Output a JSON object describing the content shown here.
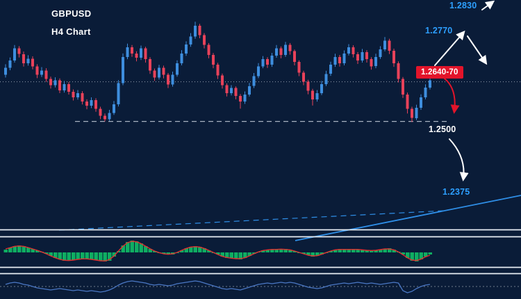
{
  "header": {
    "symbol": "GBPUSD",
    "timeframe": "H4 Chart"
  },
  "annotations": {
    "upper_target": "1.2830",
    "resistance_target": "1.2770",
    "zone_label": "1.2640-70",
    "support_label": "1.2500",
    "lower_target": "1.2375"
  },
  "colors": {
    "background": "#0a1c38",
    "bull": "#3e8ede",
    "bear": "#e8425a",
    "accent_blue": "#2d9fff",
    "badge_red": "#e3142a",
    "macd_green": "#0fae62",
    "signal_red": "#e03131",
    "osc_blue": "#4a77c4",
    "line_gray": "#b8c2cf",
    "separator": "#e8eef5",
    "trend_blue": "#2f8fe8",
    "arrow_white": "#ffffff"
  },
  "chart_data": {
    "type": "candlestick",
    "symbol": "GBPUSD",
    "timeframe": "H4",
    "title": "GBPUSD H4 Chart",
    "price_levels": {
      "resistance_zone": [
        1.264,
        1.267
      ],
      "support": 1.25,
      "targets_up": [
        1.277,
        1.283
      ],
      "target_down": 1.2375
    },
    "grid": false,
    "legend": "none",
    "ohlc": [
      [
        1.2665,
        1.2702,
        1.2655,
        1.269
      ],
      [
        1.269,
        1.2726,
        1.2681,
        1.2715
      ],
      [
        1.2715,
        1.277,
        1.2708,
        1.2758
      ],
      [
        1.2758,
        1.2766,
        1.2726,
        1.2738
      ],
      [
        1.2738,
        1.2747,
        1.2694,
        1.2705
      ],
      [
        1.2705,
        1.2734,
        1.2697,
        1.2722
      ],
      [
        1.2722,
        1.273,
        1.2684,
        1.2694
      ],
      [
        1.2694,
        1.2702,
        1.2653,
        1.2665
      ],
      [
        1.2665,
        1.2692,
        1.2657,
        1.268
      ],
      [
        1.268,
        1.2688,
        1.264,
        1.265
      ],
      [
        1.265,
        1.2658,
        1.2616,
        1.2628
      ],
      [
        1.2628,
        1.2656,
        1.262,
        1.2645
      ],
      [
        1.2645,
        1.2652,
        1.26,
        1.261
      ],
      [
        1.261,
        1.2643,
        1.2602,
        1.2632
      ],
      [
        1.2632,
        1.264,
        1.2595,
        1.2605
      ],
      [
        1.2605,
        1.2613,
        1.2574,
        1.2585
      ],
      [
        1.2585,
        1.2611,
        1.2577,
        1.26
      ],
      [
        1.26,
        1.2607,
        1.256,
        1.257
      ],
      [
        1.257,
        1.2578,
        1.2543,
        1.2555
      ],
      [
        1.2555,
        1.2585,
        1.2547,
        1.2575
      ],
      [
        1.2575,
        1.2582,
        1.2534,
        1.2545
      ],
      [
        1.2545,
        1.2552,
        1.2508,
        1.252
      ],
      [
        1.252,
        1.2528,
        1.25,
        1.2508
      ],
      [
        1.2508,
        1.2541,
        1.2502,
        1.253
      ],
      [
        1.253,
        1.2572,
        1.2523,
        1.256
      ],
      [
        1.256,
        1.2646,
        1.2553,
        1.2635
      ],
      [
        1.2635,
        1.274,
        1.2628,
        1.2728
      ],
      [
        1.2728,
        1.2775,
        1.272,
        1.2762
      ],
      [
        1.2762,
        1.277,
        1.2728,
        1.274
      ],
      [
        1.274,
        1.2748,
        1.2712,
        1.2725
      ],
      [
        1.2725,
        1.2768,
        1.2717,
        1.2758
      ],
      [
        1.2758,
        1.2764,
        1.2708,
        1.272
      ],
      [
        1.272,
        1.2727,
        1.2668,
        1.268
      ],
      [
        1.268,
        1.2687,
        1.2643,
        1.2655
      ],
      [
        1.2655,
        1.27,
        1.2648,
        1.269
      ],
      [
        1.269,
        1.2697,
        1.2652,
        1.2665
      ],
      [
        1.2665,
        1.2671,
        1.2618,
        1.263
      ],
      [
        1.263,
        1.2676,
        1.2623,
        1.2665
      ],
      [
        1.2665,
        1.2716,
        1.2658,
        1.2705
      ],
      [
        1.2705,
        1.2752,
        1.2698,
        1.274
      ],
      [
        1.274,
        1.2783,
        1.2732,
        1.2772
      ],
      [
        1.2772,
        1.2812,
        1.2764,
        1.28
      ],
      [
        1.28,
        1.2852,
        1.2792,
        1.2838
      ],
      [
        1.2838,
        1.2845,
        1.2794,
        1.2805
      ],
      [
        1.2805,
        1.2812,
        1.2758,
        1.277
      ],
      [
        1.277,
        1.2777,
        1.2723,
        1.2735
      ],
      [
        1.2735,
        1.2742,
        1.2688,
        1.27
      ],
      [
        1.27,
        1.2707,
        1.265,
        1.2662
      ],
      [
        1.2662,
        1.2669,
        1.2616,
        1.2628
      ],
      [
        1.2628,
        1.2635,
        1.2588,
        1.26
      ],
      [
        1.26,
        1.2628,
        1.2592,
        1.2618
      ],
      [
        1.2618,
        1.2624,
        1.2578,
        1.259
      ],
      [
        1.259,
        1.2597,
        1.2545,
        1.257
      ],
      [
        1.257,
        1.2606,
        1.2562,
        1.2595
      ],
      [
        1.2595,
        1.2636,
        1.2588,
        1.2625
      ],
      [
        1.2625,
        1.2671,
        1.2618,
        1.266
      ],
      [
        1.266,
        1.2706,
        1.2653,
        1.2695
      ],
      [
        1.2695,
        1.2731,
        1.2688,
        1.272
      ],
      [
        1.272,
        1.2727,
        1.2689,
        1.27
      ],
      [
        1.27,
        1.2742,
        1.2693,
        1.2732
      ],
      [
        1.2732,
        1.277,
        1.2725,
        1.2758
      ],
      [
        1.2758,
        1.2765,
        1.2723,
        1.2735
      ],
      [
        1.2735,
        1.2781,
        1.2728,
        1.277
      ],
      [
        1.277,
        1.2777,
        1.2736,
        1.2748
      ],
      [
        1.2748,
        1.2754,
        1.2698,
        1.271
      ],
      [
        1.271,
        1.2716,
        1.266,
        1.2672
      ],
      [
        1.2672,
        1.2679,
        1.2628,
        1.264
      ],
      [
        1.264,
        1.2647,
        1.2596,
        1.2608
      ],
      [
        1.2608,
        1.2615,
        1.2556,
        1.2578
      ],
      [
        1.2578,
        1.2611,
        1.257,
        1.26
      ],
      [
        1.26,
        1.2643,
        1.2593,
        1.2632
      ],
      [
        1.2632,
        1.2679,
        1.2625,
        1.2668
      ],
      [
        1.2668,
        1.2711,
        1.2661,
        1.27
      ],
      [
        1.27,
        1.2739,
        1.2693,
        1.2728
      ],
      [
        1.2728,
        1.2735,
        1.2694,
        1.2705
      ],
      [
        1.2705,
        1.2751,
        1.2698,
        1.274
      ],
      [
        1.274,
        1.2773,
        1.2733,
        1.2762
      ],
      [
        1.2762,
        1.2769,
        1.2726,
        1.2738
      ],
      [
        1.2738,
        1.2745,
        1.2703,
        1.2715
      ],
      [
        1.2715,
        1.2756,
        1.2708,
        1.2745
      ],
      [
        1.2745,
        1.2752,
        1.2708,
        1.272
      ],
      [
        1.272,
        1.2727,
        1.2683,
        1.2695
      ],
      [
        1.2695,
        1.2739,
        1.2688,
        1.2728
      ],
      [
        1.2728,
        1.2766,
        1.2721,
        1.2755
      ],
      [
        1.2755,
        1.2798,
        1.2748,
        1.2785
      ],
      [
        1.2785,
        1.2792,
        1.2738,
        1.275
      ],
      [
        1.275,
        1.2757,
        1.2693,
        1.2705
      ],
      [
        1.2705,
        1.2712,
        1.2638,
        1.265
      ],
      [
        1.265,
        1.2657,
        1.2583,
        1.2595
      ],
      [
        1.2595,
        1.2602,
        1.2528,
        1.2545
      ],
      [
        1.2545,
        1.2552,
        1.2498,
        1.2512
      ],
      [
        1.2512,
        1.2559,
        1.2505,
        1.2548
      ],
      [
        1.2548,
        1.2596,
        1.2541,
        1.2585
      ],
      [
        1.2585,
        1.2631,
        1.2578,
        1.262
      ],
      [
        1.262,
        1.2658,
        1.2613,
        1.2645
      ]
    ],
    "macd_hist": [
      4,
      7,
      9,
      10,
      9,
      7,
      5,
      3,
      1,
      -2,
      -5,
      -8,
      -10,
      -12,
      -12,
      -11,
      -10,
      -9,
      -9,
      -10,
      -11,
      -12,
      -13,
      -12,
      -6,
      2,
      10,
      15,
      17,
      16,
      13,
      9,
      5,
      2,
      -1,
      -2,
      -3,
      -3,
      0,
      3,
      6,
      8,
      9,
      8,
      6,
      3,
      0,
      -3,
      -6,
      -8,
      -8,
      -9,
      -10,
      -8,
      -5,
      -2,
      1,
      3,
      4,
      4,
      5,
      4,
      5,
      4,
      2,
      0,
      -2,
      -4,
      -6,
      -5,
      -3,
      0,
      2,
      4,
      5,
      4,
      4,
      5,
      4,
      4,
      3,
      2,
      3,
      4,
      5,
      6,
      4,
      1,
      -3,
      -8,
      -12,
      -13,
      -10,
      -6,
      -3
    ],
    "oscillator": [
      3,
      5,
      6,
      5,
      3,
      2,
      0,
      -2,
      -3,
      -4,
      -5,
      -4,
      -3,
      -4,
      -5,
      -6,
      -5,
      -6,
      -7,
      -6,
      -7,
      -8,
      -7,
      -5,
      -2,
      2,
      5,
      7,
      8,
      7,
      6,
      5,
      3,
      2,
      3,
      2,
      1,
      2,
      4,
      5,
      6,
      7,
      8,
      7,
      5,
      3,
      1,
      -1,
      -3,
      -4,
      -3,
      -4,
      -5,
      -3,
      -1,
      1,
      3,
      4,
      5,
      4,
      5,
      6,
      5,
      6,
      5,
      3,
      1,
      -1,
      -2,
      -3,
      -2,
      0,
      2,
      3,
      4,
      5,
      4,
      5,
      6,
      5,
      4,
      5,
      4,
      3,
      4,
      5,
      6,
      5,
      -6,
      -9,
      -7,
      -3,
      0,
      2,
      3
    ]
  }
}
